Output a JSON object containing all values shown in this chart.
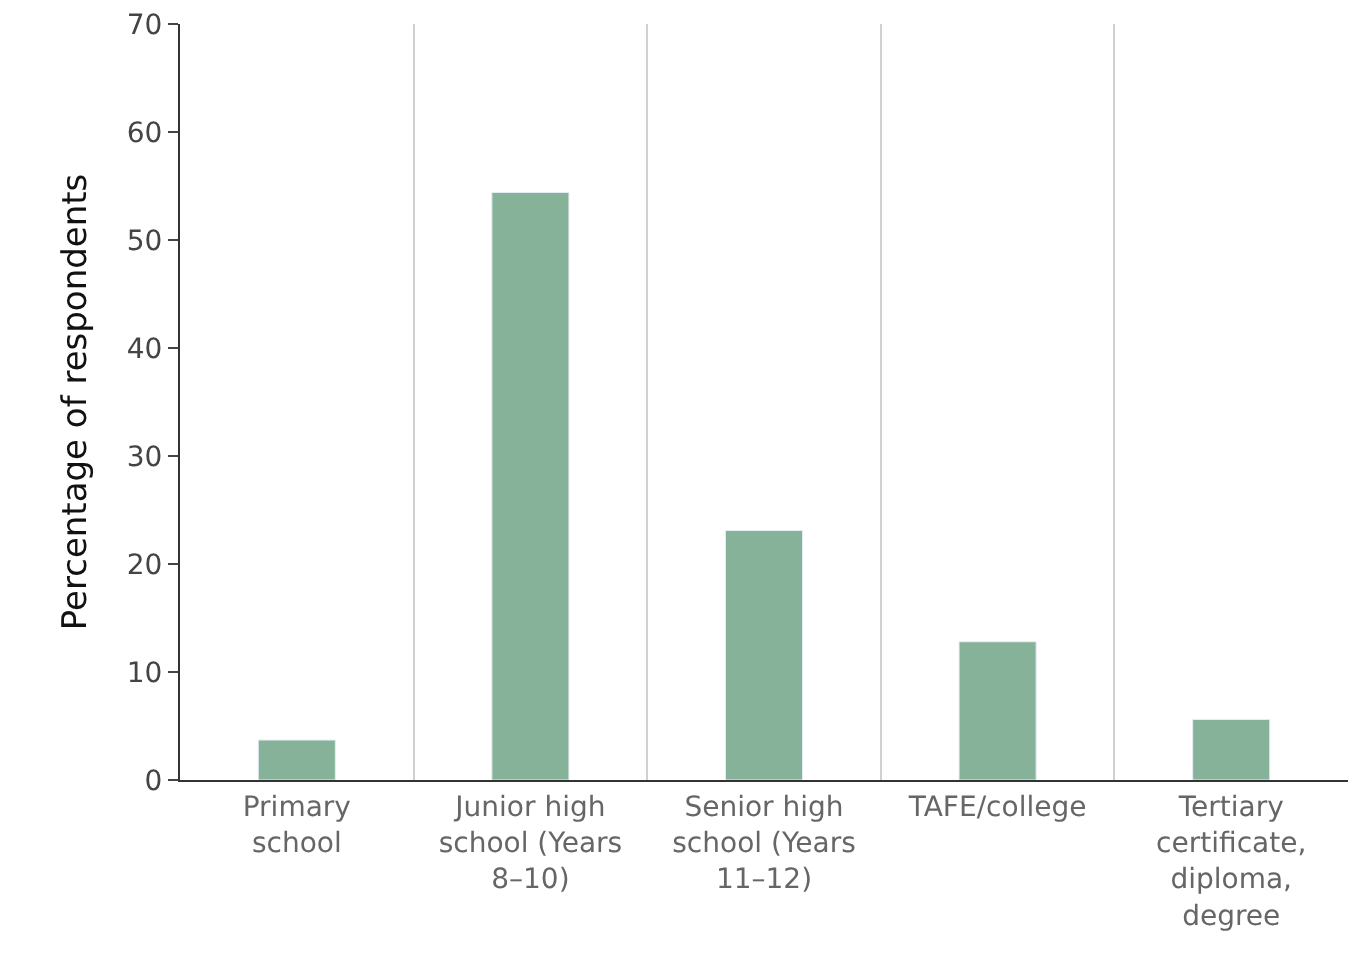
{
  "chart_data": {
    "type": "bar",
    "ylabel": "Percentage of respondents",
    "categories": [
      "Primary school",
      "Junior high school (Years 8–10)",
      "Senior high school (Years 11–12)",
      "TAFE/college",
      "Tertiary certificate, diploma, degree"
    ],
    "values": [
      3.7,
      54.4,
      23.1,
      12.8,
      5.6
    ],
    "color": "#86b29a",
    "ylim": [
      0,
      70
    ],
    "yticks": [
      0,
      10,
      20,
      30,
      40,
      50,
      60,
      70
    ],
    "grid": "x"
  }
}
